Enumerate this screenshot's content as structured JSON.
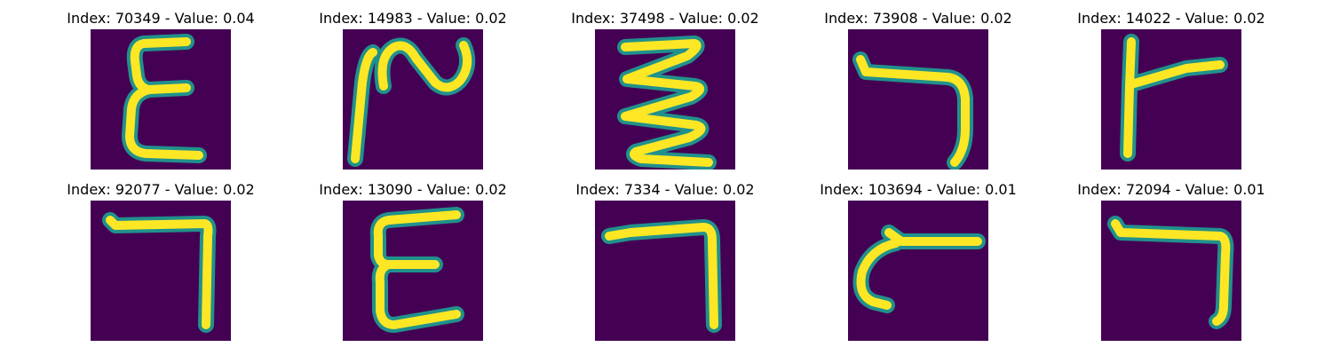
{
  "colors": {
    "background": "#440154",
    "stroke_edge": "#21918c",
    "stroke_core": "#fde725"
  },
  "samples": [
    {
      "title": "Index: 70349 - Value: 0.04",
      "glyph": "epsilon-glyph"
    },
    {
      "title": "Index: 14983 - Value: 0.02",
      "glyph": "loop-glyph"
    },
    {
      "title": "Index: 37498 - Value: 0.02",
      "glyph": "zigzag-glyph"
    },
    {
      "title": "Index: 73908 - Value: 0.02",
      "glyph": "hook-glyph"
    },
    {
      "title": "Index: 14022 - Value: 0.02",
      "glyph": "t-bar-glyph"
    },
    {
      "title": "Index: 92077 - Value: 0.02",
      "glyph": "seven-glyph"
    },
    {
      "title": "Index: 13090 - Value: 0.02",
      "glyph": "e-glyph"
    },
    {
      "title": "Index: 7334 - Value: 0.02",
      "glyph": "seven-glyph"
    },
    {
      "title": "Index: 103694 - Value: 0.01",
      "glyph": "curl-glyph"
    },
    {
      "title": "Index: 72094 - Value: 0.01",
      "glyph": "seven-glyph"
    }
  ]
}
